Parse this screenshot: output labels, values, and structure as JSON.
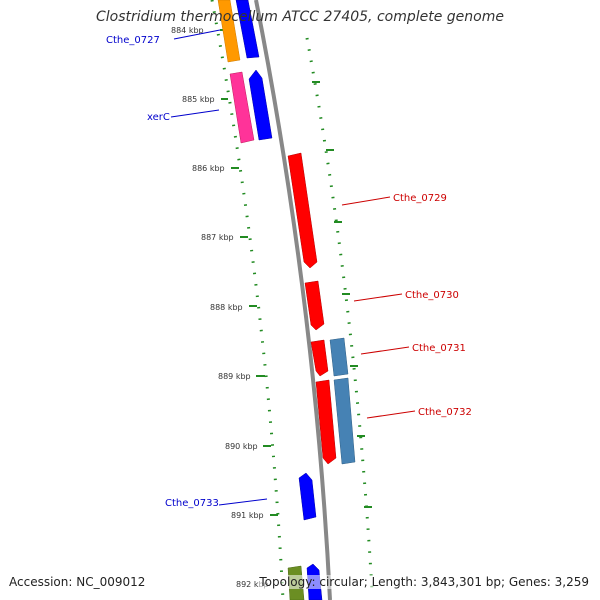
{
  "title": "Clostridium thermocellum ATCC 27405, complete genome",
  "footer": {
    "accession": "Accession: NC_009012",
    "summary": "Topology: circular; Length: 3,843,301 bp; Genes: 3,259"
  },
  "ticks": [
    {
      "label": "884 kbp"
    },
    {
      "label": "885 kbp"
    },
    {
      "label": "886 kbp"
    },
    {
      "label": "887 kbp"
    },
    {
      "label": "888 kbp"
    },
    {
      "label": "889 kbp"
    },
    {
      "label": "890 kbp"
    },
    {
      "label": "891 kbp"
    },
    {
      "label": "892 kbp"
    }
  ],
  "gene_labels": {
    "cthe_0727": "Cthe_0727",
    "xerc": "xerC",
    "cthe_0729": "Cthe_0729",
    "cthe_0730": "Cthe_0730",
    "cthe_0731": "Cthe_0731",
    "cthe_0732": "Cthe_0732",
    "cthe_0733": "Cthe_0733"
  },
  "colors": {
    "forward_gene": "#ff0000",
    "reverse_gene": "#0000ff",
    "label_forward": "#cc0000",
    "label_reverse": "#0000cc",
    "orange_gene": "#ff9900",
    "pink_gene": "#ff3399",
    "steelblue_gene": "#4682b4",
    "olive_gene": "#6b8e23",
    "backbone": "#888888",
    "dotted_track": "#228b22"
  }
}
